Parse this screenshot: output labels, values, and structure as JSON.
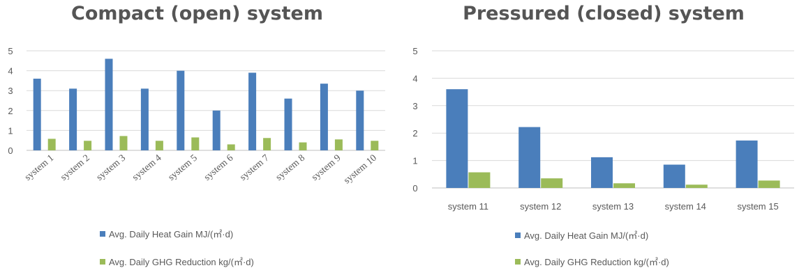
{
  "colors": {
    "heat": "#4a7ebb",
    "ghg": "#9bbb59",
    "grid": "#d9d9d9",
    "axis": "#bfbfbf"
  },
  "chart_data": [
    {
      "type": "bar",
      "title": "Compact (open) system",
      "categories": [
        "system 1",
        "system 2",
        "system 3",
        "system 4",
        "system 5",
        "system 6",
        "system 7",
        "system 8",
        "system 9",
        "system 10"
      ],
      "series": [
        {
          "name": "Avg. Daily Heat Gain MJ/(㎡·d)",
          "values": [
            3.6,
            3.1,
            4.6,
            3.1,
            4.0,
            2.0,
            3.9,
            2.6,
            3.35,
            3.0
          ]
        },
        {
          "name": "Avg. Daily GHG Reduction kg/(㎡·d)",
          "values": [
            0.58,
            0.48,
            0.72,
            0.48,
            0.65,
            0.3,
            0.62,
            0.4,
            0.55,
            0.48
          ]
        }
      ],
      "yticks": [
        "0",
        "1",
        "2",
        "3",
        "4",
        "5"
      ],
      "ylim": [
        0,
        5
      ],
      "grid": true,
      "xlabel_rotation": "rotated",
      "legend_position": "bottom"
    },
    {
      "type": "bar",
      "title": "Pressured (closed) system",
      "categories": [
        "system 11",
        "system 12",
        "system 13",
        "system 14",
        "system 15"
      ],
      "series": [
        {
          "name": "Avg. Daily Heat Gain MJ/(㎡·d)",
          "values": [
            3.6,
            2.22,
            1.12,
            0.85,
            1.73
          ]
        },
        {
          "name": "Avg. Daily GHG Reduction kg/(㎡·d)",
          "values": [
            0.57,
            0.35,
            0.17,
            0.12,
            0.27
          ]
        }
      ],
      "yticks": [
        "0",
        "1",
        "2",
        "3",
        "4",
        "5"
      ],
      "ylim": [
        0,
        5
      ],
      "grid": true,
      "xlabel_rotation": "horizontal",
      "legend_position": "bottom"
    }
  ]
}
